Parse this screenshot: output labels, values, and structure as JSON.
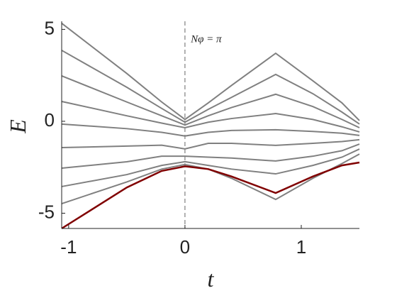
{
  "chart_data": {
    "type": "line",
    "x_label": "t",
    "y_label": "E",
    "annotation": "Nφ = π",
    "annotation_x": 0.05,
    "annotation_y": 4.3,
    "reference_line_x": 0,
    "x": [
      -1.06,
      -0.5,
      -0.2,
      0,
      0.2,
      0.4,
      0.78,
      1.1,
      1.35,
      1.5
    ],
    "series": [
      {
        "color": "#808080",
        "values": [
          5.33,
          2.6,
          1.05,
          0.1,
          1.0,
          1.95,
          3.7,
          2.2,
          1.0,
          0.04
        ]
      },
      {
        "color": "#808080",
        "values": [
          3.86,
          1.85,
          0.7,
          -0.05,
          0.65,
          1.3,
          2.55,
          1.5,
          0.5,
          -0.15
        ]
      },
      {
        "color": "#808080",
        "values": [
          2.47,
          1.05,
          0.3,
          -0.2,
          0.3,
          0.75,
          1.47,
          0.8,
          0.1,
          -0.35
        ]
      },
      {
        "color": "#808080",
        "values": [
          1.08,
          0.3,
          -0.1,
          -0.35,
          -0.05,
          0.15,
          0.42,
          0.1,
          -0.3,
          -0.58
        ]
      },
      {
        "color": "#808080",
        "values": [
          -0.15,
          -0.4,
          -0.6,
          -0.8,
          -0.6,
          -0.5,
          -0.46,
          -0.55,
          -0.65,
          -0.77
        ]
      },
      {
        "color": "#808080",
        "values": [
          -1.43,
          -1.35,
          -1.3,
          -1.5,
          -1.2,
          -1.2,
          -1.31,
          -1.2,
          -1.1,
          -1.0
        ]
      },
      {
        "color": "#808080",
        "values": [
          -2.55,
          -2.2,
          -1.9,
          -1.9,
          -1.95,
          -2.0,
          -2.16,
          -1.9,
          -1.6,
          -1.24
        ]
      },
      {
        "color": "#808080",
        "values": [
          -3.55,
          -2.9,
          -2.4,
          -2.2,
          -2.4,
          -2.6,
          -2.86,
          -2.4,
          -1.95,
          -1.51
        ]
      },
      {
        "color": "#808080",
        "values": [
          -4.48,
          -3.3,
          -2.6,
          -2.35,
          -2.6,
          -3.1,
          -4.25,
          -3.1,
          -2.3,
          -1.78
        ]
      },
      {
        "color": "#800000",
        "values": [
          -5.83,
          -3.6,
          -2.7,
          -2.45,
          -2.6,
          -3.0,
          -3.9,
          -3.0,
          -2.4,
          -2.24
        ]
      }
    ],
    "xlim": [
      -1.06,
      1.5
    ],
    "ylim": [
      -5.83,
      5.44
    ],
    "xticks": [
      -1,
      0,
      1
    ],
    "yticks": [
      -5,
      0,
      5
    ]
  }
}
